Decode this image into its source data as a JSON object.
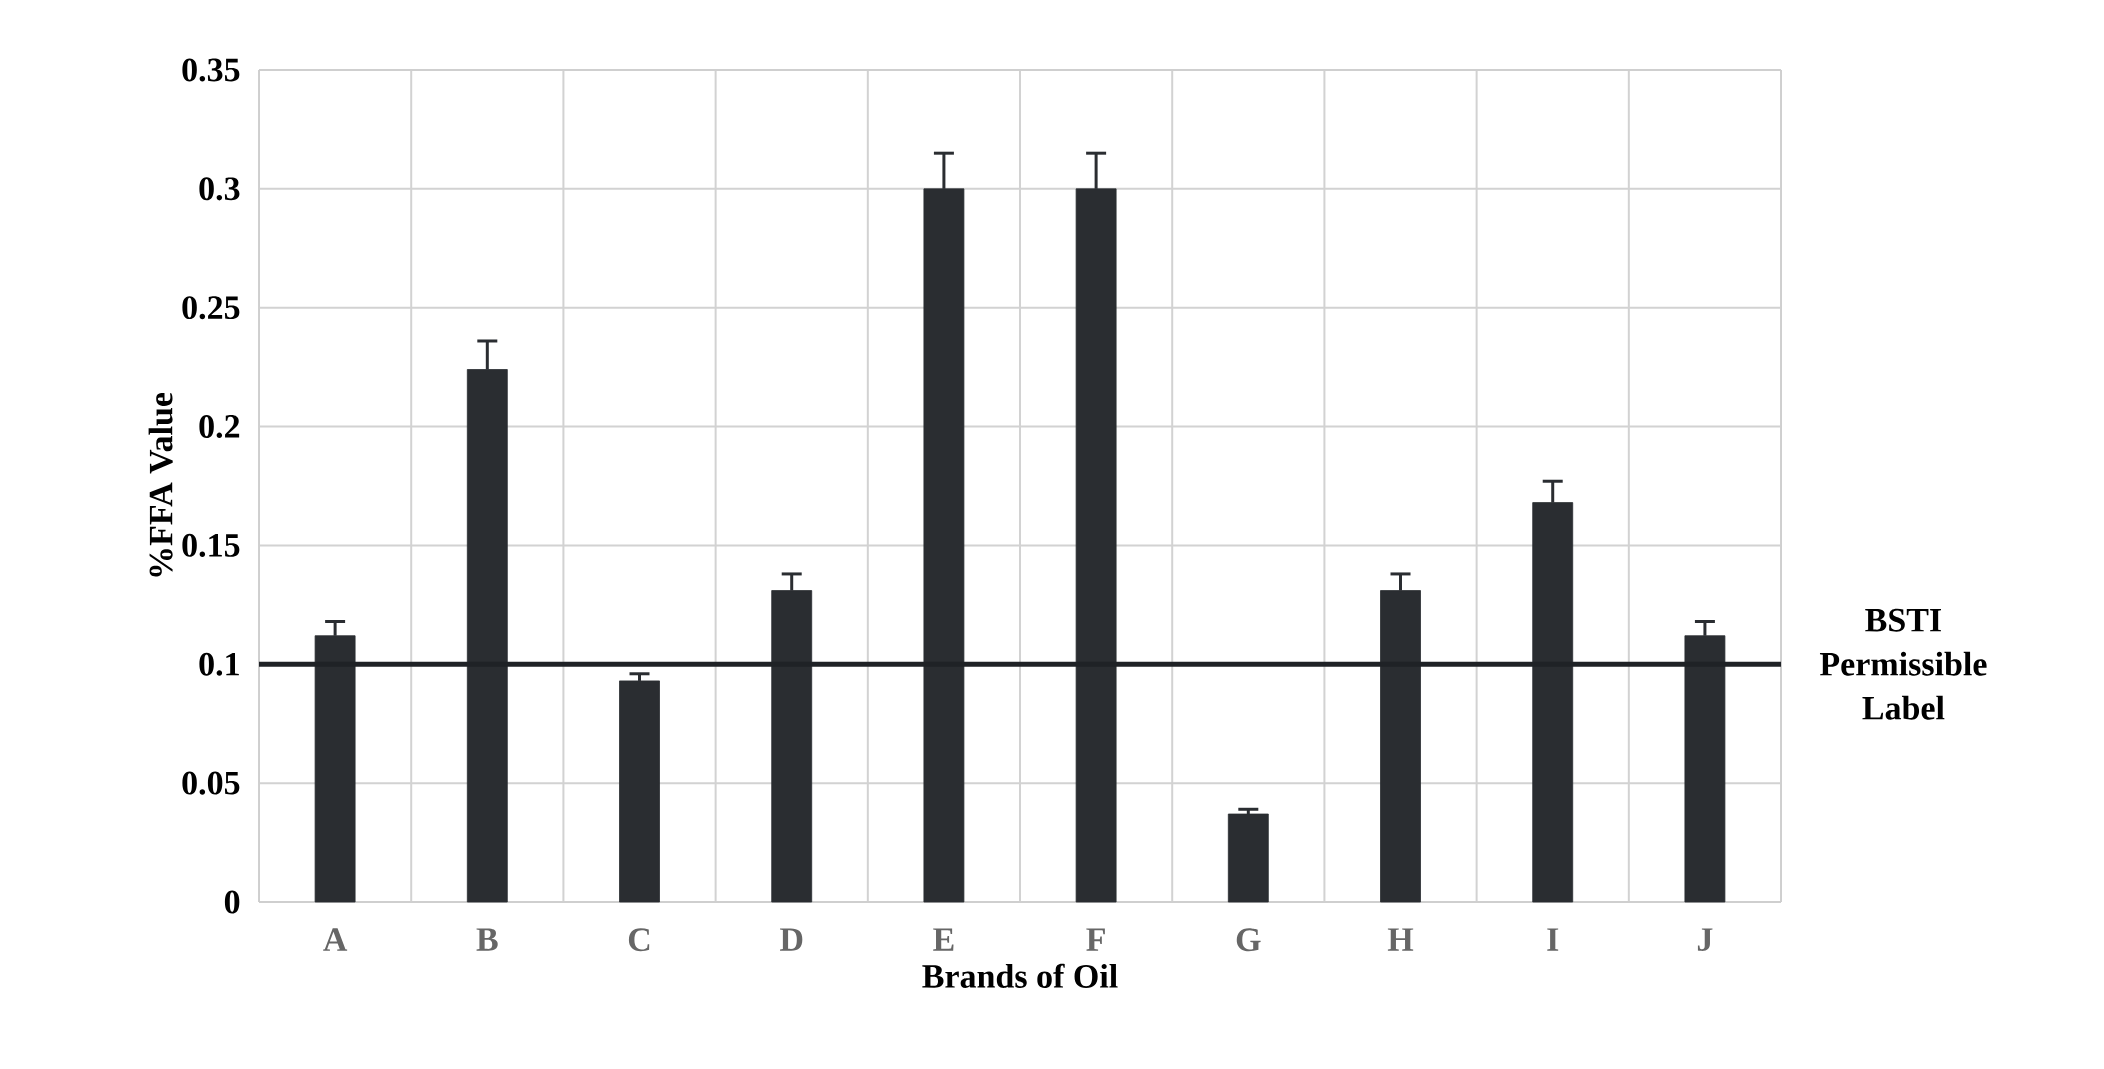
{
  "chart_data": {
    "type": "bar",
    "xlabel": "Brands of Oil",
    "ylabel": "%FFA Value",
    "categories": [
      "A",
      "B",
      "C",
      "D",
      "E",
      "F",
      "G",
      "H",
      "I",
      "J"
    ],
    "values": [
      0.112,
      0.224,
      0.093,
      0.131,
      0.3,
      0.3,
      0.037,
      0.131,
      0.168,
      0.112
    ],
    "errors": [
      0.006,
      0.012,
      0.003,
      0.007,
      0.015,
      0.015,
      0.002,
      0.007,
      0.009,
      0.006
    ],
    "color": "#2a2d31",
    "ylim": [
      0,
      0.35
    ],
    "yticks": [
      0,
      0.05,
      0.1,
      0.15,
      0.2,
      0.25,
      0.3,
      0.35
    ],
    "grid": true,
    "ref_lines": [
      {
        "axis": "y",
        "value": 0.1,
        "label": "BSTI Permissible Label",
        "color": "#1f2226"
      }
    ]
  }
}
